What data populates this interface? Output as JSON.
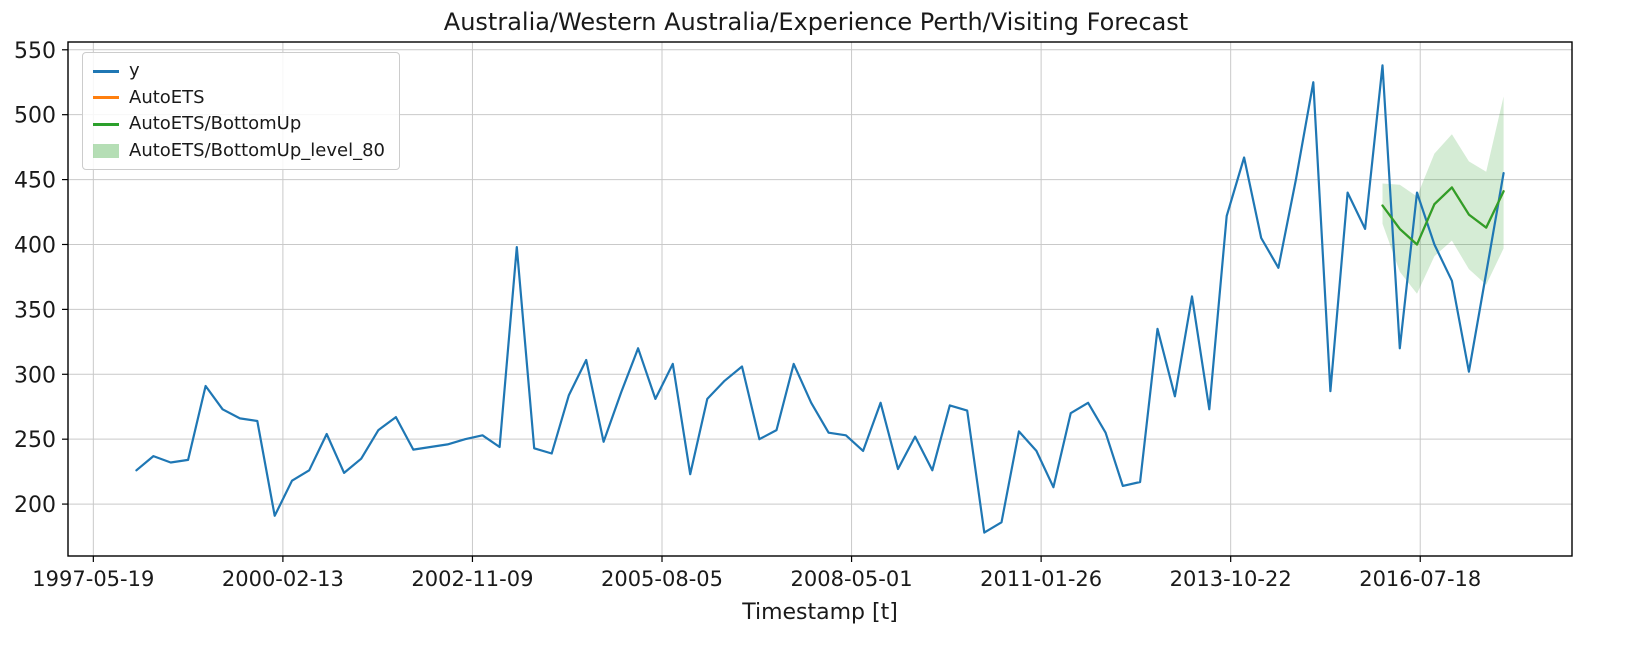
{
  "chart_data": {
    "type": "line",
    "title": "Australia/Western Australia/Experience Perth/Visiting Forecast",
    "xlabel": "Timestamp [t]",
    "ylabel": "",
    "x_start": "1998-01-01",
    "x_freq_months": 3,
    "x_tick_labels": [
      "1997-05-19",
      "2000-02-13",
      "2002-11-09",
      "2005-08-05",
      "2008-05-01",
      "2011-01-26",
      "2013-10-22",
      "2016-07-18"
    ],
    "y_tick_labels": [
      200,
      250,
      300,
      350,
      400,
      450,
      500,
      550
    ],
    "ylim": [
      160,
      556
    ],
    "grid": true,
    "legend_position": "upper left",
    "series": [
      {
        "name": "y",
        "color": "#1f77b4",
        "start_index": 0,
        "values": [
          226,
          237,
          232,
          234,
          291,
          273,
          266,
          264,
          191,
          218,
          226,
          254,
          224,
          235,
          257,
          267,
          242,
          244,
          246,
          250,
          253,
          244,
          398,
          243,
          239,
          284,
          311,
          248,
          286,
          320,
          281,
          308,
          223,
          281,
          295,
          306,
          250,
          257,
          308,
          278,
          255,
          253,
          241,
          278,
          227,
          252,
          226,
          276,
          272,
          178,
          186,
          256,
          241,
          213,
          270,
          278,
          255,
          214,
          217,
          335,
          283,
          360,
          273,
          422,
          467,
          405,
          382,
          450,
          525,
          287,
          440,
          412,
          538,
          320,
          440,
          400,
          372,
          302,
          378,
          455
        ]
      },
      {
        "name": "AutoETS",
        "color": "#ff7f0e",
        "start_index": 72,
        "values": [
          430,
          412,
          400,
          431,
          444,
          423,
          413,
          441
        ]
      },
      {
        "name": "AutoETS/BottomUp",
        "color": "#2ca02c",
        "start_index": 72,
        "values": [
          430,
          412,
          400,
          431,
          444,
          423,
          413,
          441
        ]
      }
    ],
    "bands": [
      {
        "name": "AutoETS/BottomUp_level_80",
        "color": "#2ca02c",
        "opacity": 0.2,
        "start_index": 72,
        "lower": [
          416,
          379,
          362,
          391,
          403,
          381,
          369,
          397
        ],
        "upper": [
          447,
          446,
          437,
          470,
          485,
          464,
          456,
          514
        ]
      }
    ]
  }
}
